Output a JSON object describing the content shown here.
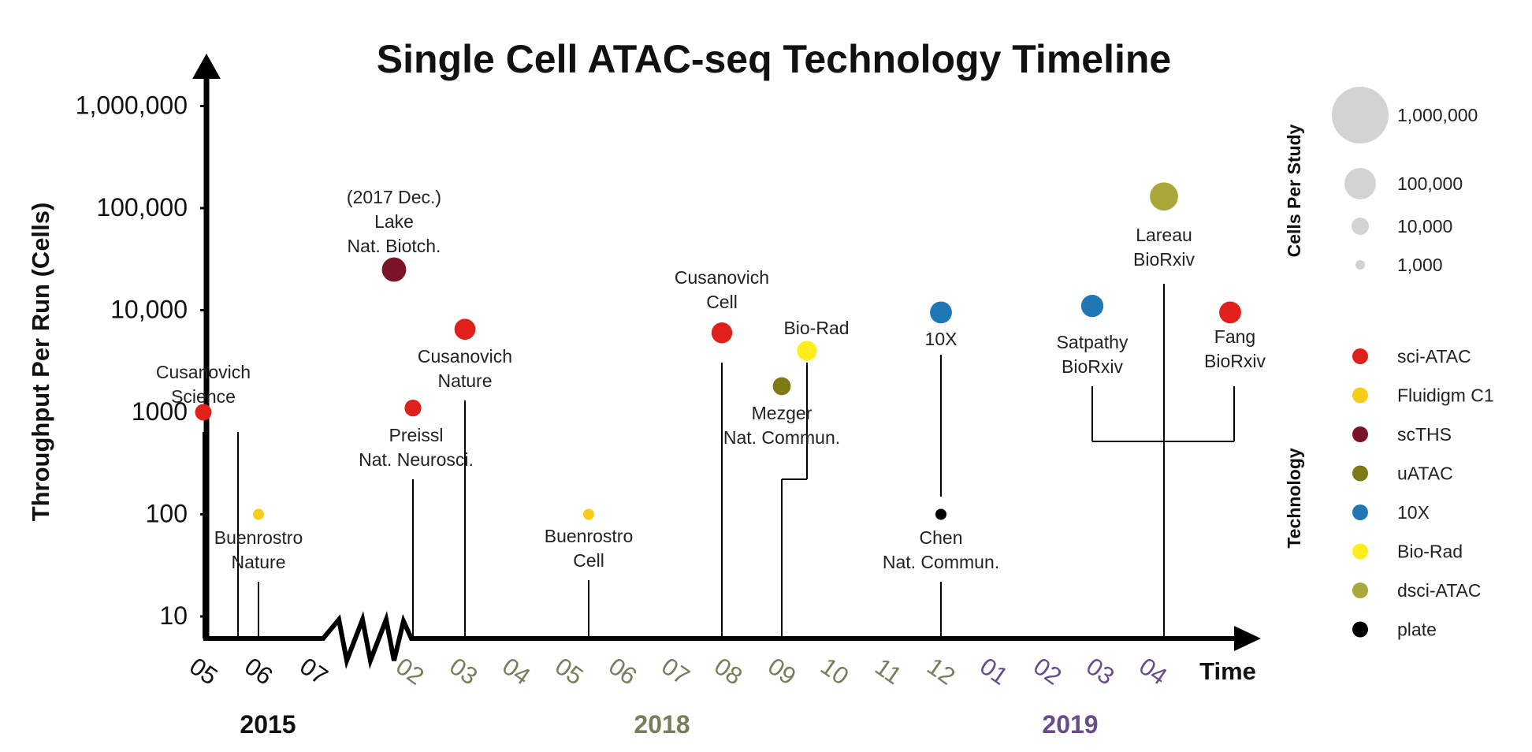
{
  "chart_data": {
    "type": "scatter",
    "title": "Single Cell ATAC-seq Technology Timeline",
    "ylabel": "Throughput Per Run (Cells)",
    "xlabel": "Time",
    "y_scale": "log",
    "ylim": [
      10,
      1000000
    ],
    "y_ticks": [
      "10",
      "100",
      "1000",
      "10,000",
      "100,000",
      "1,000,000"
    ],
    "months": [
      {
        "label": "05",
        "year": "2015"
      },
      {
        "label": "06",
        "year": "2015"
      },
      {
        "label": "07",
        "year": "2015"
      },
      {
        "label": "02",
        "year": "2018"
      },
      {
        "label": "03",
        "year": "2018"
      },
      {
        "label": "04",
        "year": "2018"
      },
      {
        "label": "05",
        "year": "2018"
      },
      {
        "label": "06",
        "year": "2018"
      },
      {
        "label": "07",
        "year": "2018"
      },
      {
        "label": "08",
        "year": "2018"
      },
      {
        "label": "09",
        "year": "2018"
      },
      {
        "label": "10",
        "year": "2018"
      },
      {
        "label": "11",
        "year": "2018"
      },
      {
        "label": "12",
        "year": "2018"
      },
      {
        "label": "01",
        "year": "2019"
      },
      {
        "label": "02",
        "year": "2019"
      },
      {
        "label": "03",
        "year": "2019"
      },
      {
        "label": "04",
        "year": "2019"
      }
    ],
    "years": [
      {
        "label": "2015",
        "color": "#111111"
      },
      {
        "label": "2018",
        "color": "#7a7d5c"
      },
      {
        "label": "2019",
        "color": "#6a4b8a"
      }
    ],
    "technologies": [
      {
        "name": "sci-ATAC",
        "color": "#e0201b"
      },
      {
        "name": "Fluidigm C1",
        "color": "#f7cc1b"
      },
      {
        "name": "scTHS",
        "color": "#7b1428"
      },
      {
        "name": "uATAC",
        "color": "#7d7a14"
      },
      {
        "name": "10X",
        "color": "#1f77b4"
      },
      {
        "name": "Bio-Rad",
        "color": "#ffee1b"
      },
      {
        "name": "dsci-ATAC",
        "color": "#a9a83a"
      },
      {
        "name": "plate",
        "color": "#000000"
      }
    ],
    "size_legend": {
      "title": "Cells Per Study",
      "entries": [
        "1,000,000",
        "100,000",
        "10,000",
        "1,000"
      ]
    },
    "technology_legend_title": "Technology",
    "studies": [
      {
        "label": "Cusanovich\nScience",
        "tech": "sci-ATAC",
        "date": "2015-05",
        "throughput": 1000
      },
      {
        "label": "Buenrostro\nNature",
        "tech": "Fluidigm C1",
        "date": "2015-06",
        "throughput": 100
      },
      {
        "label": "(2017 Dec.)\nLake\nNat. Biotch.",
        "tech": "scTHS",
        "date": "2017-12",
        "throughput": 25000
      },
      {
        "label": "Preissl\nNat. Neurosci.",
        "tech": "sci-ATAC",
        "date": "2018-02",
        "throughput": 1100
      },
      {
        "label": "Cusanovich\nNature",
        "tech": "sci-ATAC",
        "date": "2018-03",
        "throughput": 6500
      },
      {
        "label": "Buenrostro\nCell",
        "tech": "Fluidigm C1",
        "date": "2018-05",
        "throughput": 100
      },
      {
        "label": "Cusanovich\nCell",
        "tech": "sci-ATAC",
        "date": "2018-08",
        "throughput": 6000
      },
      {
        "label": "Mezger\nNat. Commun.",
        "tech": "uATAC",
        "date": "2018-09",
        "throughput": 1800
      },
      {
        "label": "Bio-Rad",
        "tech": "Bio-Rad",
        "date": "2018-09",
        "throughput": 4000
      },
      {
        "label": "10X",
        "tech": "10X",
        "date": "2018-12",
        "throughput": 9500
      },
      {
        "label": "Chen\nNat. Commun.",
        "tech": "plate",
        "date": "2018-12",
        "throughput": 100
      },
      {
        "label": "Satpathy\nBioRxiv",
        "tech": "10X",
        "date": "2019-03",
        "throughput": 11000
      },
      {
        "label": "Lareau\nBioRxiv",
        "tech": "dsci-ATAC",
        "date": "2019-04",
        "throughput": 130000
      },
      {
        "label": "Fang\nBioRxiv",
        "tech": "sci-ATAC",
        "date": "2019-04",
        "throughput": 9500
      }
    ]
  }
}
